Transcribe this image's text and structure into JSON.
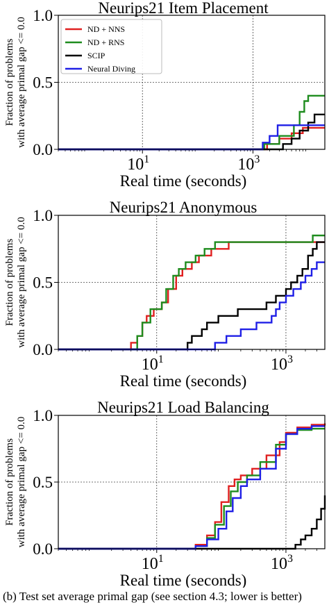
{
  "caption": "(b) Test set average primal gap (see section 4.3; lower is better)",
  "legend": {
    "entries": [
      {
        "label": "ND + NNS",
        "color": "#e02020"
      },
      {
        "label": "ND + RNS",
        "color": "#1e8c1e"
      },
      {
        "label": "SCIP",
        "color": "#000000"
      },
      {
        "label": "Neural Diving",
        "color": "#1f1fe6"
      }
    ]
  },
  "chart_data": [
    {
      "type": "line",
      "title": "Neurips21 Item Placement",
      "xlabel": "Real time (seconds)",
      "ylabel": [
        "Fraction of problems",
        "with average primal gap <= 0.0"
      ],
      "xscale": "log",
      "xlim": [
        0.3,
        20000
      ],
      "ylim": [
        0,
        1.0
      ],
      "xticks": [
        {
          "value": 10,
          "label": "10¹"
        },
        {
          "value": 1000,
          "label": "10³"
        }
      ],
      "yticks": [
        {
          "value": 0,
          "label": "0.0"
        },
        {
          "value": 0.5,
          "label": "0.5"
        },
        {
          "value": 1.0,
          "label": "1.0"
        }
      ],
      "grid": true,
      "legend_position": "top-left",
      "series": [
        {
          "name": "ND + NNS",
          "color": "#e02020",
          "points": [
            [
              0.3,
              0
            ],
            [
              1200,
              0
            ],
            [
              1800,
              0.04
            ],
            [
              3000,
              0.08
            ],
            [
              5000,
              0.12
            ],
            [
              8000,
              0.16
            ],
            [
              20000,
              0.16
            ]
          ]
        },
        {
          "name": "ND + RNS",
          "color": "#1e8c1e",
          "points": [
            [
              0.3,
              0
            ],
            [
              1000,
              0
            ],
            [
              1600,
              0.04
            ],
            [
              3000,
              0.1
            ],
            [
              5500,
              0.18
            ],
            [
              7000,
              0.28
            ],
            [
              8500,
              0.36
            ],
            [
              10000,
              0.4
            ],
            [
              20000,
              0.4
            ]
          ]
        },
        {
          "name": "SCIP",
          "color": "#000000",
          "points": [
            [
              0.3,
              0
            ],
            [
              2000,
              0
            ],
            [
              3500,
              0.04
            ],
            [
              5000,
              0.08
            ],
            [
              7000,
              0.14
            ],
            [
              10000,
              0.2
            ],
            [
              13000,
              0.26
            ],
            [
              20000,
              0.26
            ]
          ]
        },
        {
          "name": "Neural Diving",
          "color": "#1f1fe6",
          "points": [
            [
              0.3,
              0
            ],
            [
              1000,
              0
            ],
            [
              1500,
              0.05
            ],
            [
              2000,
              0.1
            ],
            [
              2800,
              0.18
            ],
            [
              20000,
              0.18
            ]
          ]
        }
      ]
    },
    {
      "type": "line",
      "title": "Neurips21 Anonymous",
      "xlabel": "Real time (seconds)",
      "ylabel": [
        "Fraction of problems",
        "with average primal gap <= 0.0"
      ],
      "xscale": "log",
      "xlim": [
        0.3,
        4000
      ],
      "ylim": [
        0,
        1.0
      ],
      "xticks": [
        {
          "value": 10,
          "label": "10¹"
        },
        {
          "value": 1000,
          "label": "10³"
        }
      ],
      "yticks": [
        {
          "value": 0,
          "label": "0.0"
        },
        {
          "value": 0.5,
          "label": "0.5"
        },
        {
          "value": 1.0,
          "label": "1.0"
        }
      ],
      "grid": true,
      "series": [
        {
          "name": "ND + NNS",
          "color": "#e02020",
          "points": [
            [
              0.3,
              0
            ],
            [
              3.5,
              0
            ],
            [
              4,
              0.05
            ],
            [
              5,
              0.1
            ],
            [
              6,
              0.2
            ],
            [
              7,
              0.25
            ],
            [
              9,
              0.3
            ],
            [
              12,
              0.35
            ],
            [
              15,
              0.45
            ],
            [
              20,
              0.55
            ],
            [
              25,
              0.6
            ],
            [
              35,
              0.65
            ],
            [
              45,
              0.7
            ],
            [
              70,
              0.75
            ],
            [
              130,
              0.8
            ],
            [
              4000,
              0.8
            ]
          ]
        },
        {
          "name": "ND + RNS",
          "color": "#1e8c1e",
          "points": [
            [
              0.3,
              0
            ],
            [
              4.5,
              0
            ],
            [
              5,
              0.1
            ],
            [
              6,
              0.2
            ],
            [
              8,
              0.3
            ],
            [
              12,
              0.35
            ],
            [
              14,
              0.45
            ],
            [
              18,
              0.55
            ],
            [
              22,
              0.6
            ],
            [
              28,
              0.65
            ],
            [
              40,
              0.7
            ],
            [
              55,
              0.75
            ],
            [
              80,
              0.8
            ],
            [
              2500,
              0.8
            ],
            [
              2600,
              0.85
            ],
            [
              4000,
              0.85
            ]
          ]
        },
        {
          "name": "SCIP",
          "color": "#000000",
          "points": [
            [
              0.3,
              0
            ],
            [
              28,
              0
            ],
            [
              30,
              0.05
            ],
            [
              35,
              0.1
            ],
            [
              50,
              0.15
            ],
            [
              60,
              0.2
            ],
            [
              90,
              0.25
            ],
            [
              180,
              0.3
            ],
            [
              500,
              0.35
            ],
            [
              700,
              0.4
            ],
            [
              1000,
              0.45
            ],
            [
              1200,
              0.5
            ],
            [
              1500,
              0.55
            ],
            [
              1800,
              0.6
            ],
            [
              2200,
              0.7
            ],
            [
              2600,
              0.75
            ],
            [
              3000,
              0.8
            ],
            [
              4000,
              0.8
            ]
          ]
        },
        {
          "name": "Neural Diving",
          "color": "#1f1fe6",
          "points": [
            [
              0.3,
              0
            ],
            [
              75,
              0
            ],
            [
              80,
              0.05
            ],
            [
              120,
              0.1
            ],
            [
              200,
              0.15
            ],
            [
              350,
              0.2
            ],
            [
              600,
              0.25
            ],
            [
              700,
              0.3
            ],
            [
              800,
              0.35
            ],
            [
              1000,
              0.4
            ],
            [
              1300,
              0.45
            ],
            [
              1700,
              0.5
            ],
            [
              2000,
              0.55
            ],
            [
              2500,
              0.6
            ],
            [
              3000,
              0.65
            ],
            [
              4000,
              0.65
            ]
          ]
        }
      ]
    },
    {
      "type": "line",
      "title": "Neurips21 Load Balancing",
      "xlabel": "Real time (seconds)",
      "ylabel": [
        "Fraction of problems",
        "with average primal gap <= 0.0"
      ],
      "xscale": "log",
      "xlim": [
        0.3,
        4000
      ],
      "ylim": [
        0,
        1.0
      ],
      "xticks": [
        {
          "value": 10,
          "label": "10¹"
        },
        {
          "value": 1000,
          "label": "10³"
        }
      ],
      "yticks": [
        {
          "value": 0,
          "label": "0.0"
        },
        {
          "value": 0.5,
          "label": "0.5"
        },
        {
          "value": 1.0,
          "label": "1.0"
        }
      ],
      "grid": true,
      "series": [
        {
          "name": "ND + NNS",
          "color": "#e02020",
          "points": [
            [
              0.3,
              0
            ],
            [
              30,
              0
            ],
            [
              40,
              0.03
            ],
            [
              60,
              0.1
            ],
            [
              80,
              0.2
            ],
            [
              100,
              0.35
            ],
            [
              130,
              0.47
            ],
            [
              160,
              0.52
            ],
            [
              200,
              0.55
            ],
            [
              300,
              0.6
            ],
            [
              500,
              0.7
            ],
            [
              800,
              0.8
            ],
            [
              1000,
              0.87
            ],
            [
              1500,
              0.91
            ],
            [
              2500,
              0.93
            ],
            [
              4000,
              0.94
            ]
          ]
        },
        {
          "name": "ND + RNS",
          "color": "#1e8c1e",
          "points": [
            [
              0.3,
              0
            ],
            [
              30,
              0
            ],
            [
              40,
              0.02
            ],
            [
              60,
              0.08
            ],
            [
              80,
              0.18
            ],
            [
              110,
              0.32
            ],
            [
              140,
              0.43
            ],
            [
              180,
              0.5
            ],
            [
              250,
              0.55
            ],
            [
              400,
              0.65
            ],
            [
              700,
              0.78
            ],
            [
              1000,
              0.86
            ],
            [
              1500,
              0.89
            ],
            [
              2500,
              0.9
            ],
            [
              4000,
              0.9
            ]
          ]
        },
        {
          "name": "SCIP",
          "color": "#000000",
          "points": [
            [
              0.3,
              0
            ],
            [
              1200,
              0
            ],
            [
              1400,
              0.03
            ],
            [
              1700,
              0.07
            ],
            [
              2000,
              0.1
            ],
            [
              2500,
              0.15
            ],
            [
              3000,
              0.22
            ],
            [
              3500,
              0.3
            ],
            [
              4000,
              0.4
            ]
          ]
        },
        {
          "name": "Neural Diving",
          "color": "#1f1fe6",
          "points": [
            [
              0.3,
              0
            ],
            [
              30,
              0
            ],
            [
              40,
              0.02
            ],
            [
              60,
              0.07
            ],
            [
              90,
              0.15
            ],
            [
              120,
              0.28
            ],
            [
              150,
              0.38
            ],
            [
              200,
              0.47
            ],
            [
              250,
              0.52
            ],
            [
              400,
              0.6
            ],
            [
              700,
              0.75
            ],
            [
              1000,
              0.86
            ],
            [
              1500,
              0.9
            ],
            [
              2500,
              0.92
            ],
            [
              4000,
              0.92
            ]
          ]
        }
      ]
    }
  ]
}
